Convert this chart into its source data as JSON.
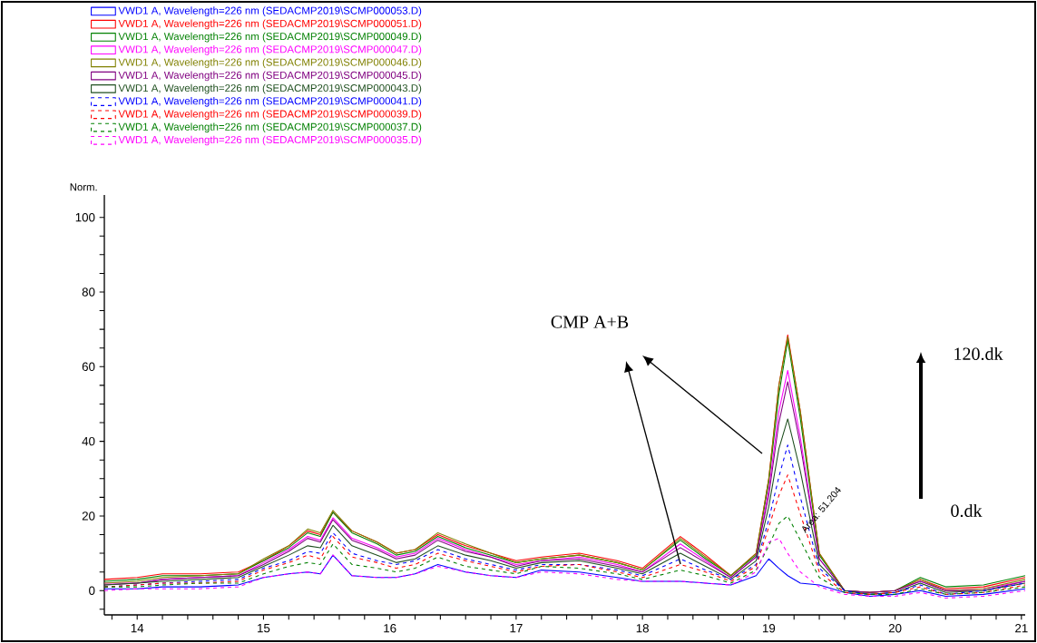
{
  "chart_data": {
    "type": "line",
    "ylabel": "Norm.",
    "legend": "top left",
    "grid": false,
    "marker": "none",
    "xlim": [
      13.74,
      21.03
    ],
    "ylim": [
      -6.5,
      106
    ],
    "xticks": [
      {
        "value": 13.8,
        "label": null
      },
      14,
      {
        "value": 14.2,
        "label": null
      },
      {
        "value": 14.4,
        "label": null
      },
      {
        "value": 14.6,
        "label": null
      },
      {
        "value": 14.8,
        "label": null
      },
      15,
      {
        "value": 15.2,
        "label": null
      },
      {
        "value": 15.4,
        "label": null
      },
      {
        "value": 15.6,
        "label": null
      },
      {
        "value": 15.8,
        "label": null
      },
      16,
      {
        "value": 16.2,
        "label": null
      },
      {
        "value": 16.4,
        "label": null
      },
      {
        "value": 16.6,
        "label": null
      },
      {
        "value": 16.8,
        "label": null
      },
      17,
      {
        "value": 17.2,
        "label": null
      },
      {
        "value": 17.4,
        "label": null
      },
      {
        "value": 17.6,
        "label": null
      },
      {
        "value": 17.8,
        "label": null
      },
      18,
      {
        "value": 18.2,
        "label": null
      },
      {
        "value": 18.4,
        "label": null
      },
      {
        "value": 18.6,
        "label": null
      },
      {
        "value": 18.8,
        "label": null
      },
      19,
      {
        "value": 19.2,
        "label": null
      },
      {
        "value": 19.4,
        "label": null
      },
      {
        "value": 19.6,
        "label": null
      },
      {
        "value": 19.8,
        "label": null
      },
      20,
      {
        "value": 20.2,
        "label": null
      },
      {
        "value": 20.4,
        "label": null
      },
      {
        "value": 20.6,
        "label": null
      },
      {
        "value": 20.8,
        "label": null
      },
      21
    ],
    "yticks": [
      {
        "value": -5,
        "label": null
      },
      0,
      {
        "value": 5,
        "label": null
      },
      {
        "value": 10,
        "label": null
      },
      {
        "value": 15,
        "label": null
      },
      20,
      {
        "value": 25,
        "label": null
      },
      {
        "value": 30,
        "label": null
      },
      {
        "value": 35,
        "label": null
      },
      40,
      {
        "value": 45,
        "label": null
      },
      {
        "value": 50,
        "label": null
      },
      {
        "value": 55,
        "label": null
      },
      60,
      {
        "value": 65,
        "label": null
      },
      {
        "value": 70,
        "label": null
      },
      {
        "value": 75,
        "label": null
      },
      80,
      {
        "value": 85,
        "label": null
      },
      {
        "value": 90,
        "label": null
      },
      {
        "value": 95,
        "label": null
      },
      100
    ],
    "x": [
      13.74,
      14.0,
      14.2,
      14.5,
      14.8,
      15.0,
      15.2,
      15.35,
      15.45,
      15.55,
      15.7,
      15.9,
      16.05,
      16.2,
      16.38,
      16.6,
      16.8,
      17.0,
      17.2,
      17.5,
      17.8,
      18.0,
      18.3,
      18.5,
      18.7,
      18.9,
      19.0,
      19.08,
      19.15,
      19.25,
      19.4,
      19.6,
      19.8,
      20.0,
      20.2,
      20.4,
      20.7,
      21.03
    ],
    "annotations": [
      "CMP A+B",
      "120.dk",
      "0.dk",
      "Area: 51.204"
    ],
    "series": [
      {
        "name": "VWD1 A, Wavelength=226 nm (SEDACMP2019\\SCMP000053.D)",
        "color": "#0000ff",
        "line_style": "solid",
        "values": [
          0.5,
          0.5,
          1,
          1,
          1.5,
          3.5,
          4.5,
          5,
          4.5,
          9.5,
          4,
          3.5,
          3.5,
          4.5,
          7,
          5,
          4,
          3.5,
          5.5,
          5,
          3.5,
          2.5,
          2.5,
          2,
          1.5,
          4,
          8.5,
          6,
          4,
          2,
          1.5,
          -0.5,
          -1.5,
          -1,
          0,
          -1.5,
          -1,
          0.5
        ]
      },
      {
        "name": "VWD1 A, Wavelength=226 nm (SEDACMP2019\\SCMP000051.D)",
        "color": "#ff0000",
        "line_style": "solid",
        "values": [
          3,
          3.5,
          4.5,
          4.5,
          5,
          8,
          12,
          16,
          15,
          21,
          16,
          13,
          10,
          11,
          15,
          12,
          10,
          8,
          9,
          10,
          8,
          6,
          14.5,
          9.5,
          4,
          10,
          30,
          55,
          68.5,
          48,
          10,
          0,
          -0.5,
          0,
          3,
          0.5,
          1,
          3.5
        ]
      },
      {
        "name": "VWD1 A, Wavelength=226 nm (SEDACMP2019\\SCMP000049.D)",
        "color": "#008000",
        "line_style": "solid",
        "values": [
          2.5,
          3,
          4,
          4,
          4.5,
          8,
          11.5,
          15.5,
          14.5,
          21,
          15.5,
          12.5,
          9.5,
          10.5,
          14.5,
          11.5,
          9.5,
          7.5,
          8.5,
          9.5,
          7.5,
          5.5,
          13.5,
          8.5,
          4,
          9.5,
          29,
          52.5,
          67,
          46,
          9.5,
          0,
          -0.5,
          0,
          3.5,
          1,
          1.5,
          4
        ]
      },
      {
        "name": "VWD1 A, Wavelength=226 nm (SEDACMP2019\\SCMP000047.D)",
        "color": "#ff00ff",
        "line_style": "solid",
        "values": [
          2,
          2,
          3,
          3.5,
          4,
          7.5,
          11,
          14.5,
          13.5,
          19.5,
          14,
          11.5,
          9,
          10,
          14,
          11,
          9,
          7,
          8,
          9,
          7,
          5,
          12.5,
          8,
          3.5,
          9,
          27,
          48,
          59,
          41,
          8.5,
          0,
          -0.5,
          0,
          2.5,
          0,
          0.5,
          2.5
        ]
      },
      {
        "name": "VWD1 A, Wavelength=226 nm (SEDACMP2019\\SCMP000046.D)",
        "color": "#808000",
        "line_style": "solid",
        "values": [
          2,
          2.5,
          3.5,
          4,
          4.5,
          8.5,
          12,
          16.5,
          15.5,
          21.5,
          16,
          13,
          10,
          11,
          15.5,
          12.5,
          10,
          7.5,
          8.5,
          9.5,
          7.5,
          5.5,
          14,
          9,
          4,
          10,
          30,
          55,
          68,
          48,
          10,
          0,
          -0.5,
          0,
          3,
          0,
          0.5,
          3
        ]
      },
      {
        "name": "VWD1 A, Wavelength=226 nm (SEDACMP2019\\SCMP000045.D)",
        "color": "#800080",
        "line_style": "solid",
        "values": [
          1.5,
          2,
          3,
          3.5,
          4,
          7,
          10.5,
          14,
          13,
          19,
          13.5,
          11,
          8.5,
          9.5,
          13.5,
          10.5,
          9,
          6.5,
          8,
          8.5,
          6.5,
          5,
          11.5,
          7.5,
          3.5,
          9,
          25.5,
          45,
          56,
          39,
          8.5,
          0,
          -0.5,
          0,
          2.5,
          0,
          0,
          2.5
        ]
      },
      {
        "name": "VWD1 A, Wavelength=226 nm (SEDACMP2019\\SCMP000043.D)",
        "color": "#1f4f1f",
        "line_style": "solid",
        "values": [
          1.5,
          2,
          2.5,
          3,
          3.5,
          6.5,
          9.5,
          12,
          11.5,
          17.5,
          12,
          9.5,
          7.5,
          8.5,
          12,
          9.5,
          8,
          6,
          7.5,
          8,
          6,
          4.5,
          10,
          6.5,
          3,
          8,
          22.5,
          38,
          46,
          32,
          7,
          0,
          -1,
          -0.5,
          2,
          -0.5,
          0,
          2
        ]
      },
      {
        "name": "VWD1 A, Wavelength=226 nm (SEDACMP2019\\SCMP000041.D)",
        "color": "#0000ff",
        "line_style": "dashed",
        "values": [
          1,
          1.5,
          2,
          2.5,
          3,
          6,
          8,
          10.5,
          10,
          15.5,
          10,
          8,
          7,
          8,
          11,
          8.5,
          7,
          5.5,
          7,
          7,
          5.5,
          4,
          8.5,
          5.5,
          3,
          7,
          19,
          30.5,
          39,
          25,
          6,
          0,
          -1,
          -0.5,
          1.5,
          -1,
          0,
          2
        ]
      },
      {
        "name": "VWD1 A, Wavelength=226 nm (SEDACMP2019\\SCMP000039.D)",
        "color": "#ff0000",
        "line_style": "dashed",
        "values": [
          1,
          1.5,
          2,
          2,
          2.5,
          5.5,
          7.5,
          9.5,
          8.5,
          14.5,
          9,
          7.5,
          6,
          7,
          10,
          8,
          6.5,
          5,
          6.5,
          7,
          5,
          3.5,
          7,
          5,
          2.5,
          6.5,
          17,
          25.5,
          31,
          20.5,
          5,
          -0.5,
          -1,
          -0.5,
          1,
          -1,
          -0.5,
          1.5
        ]
      },
      {
        "name": "VWD1 A, Wavelength=226 nm (SEDACMP2019\\SCMP000037.D)",
        "color": "#008000",
        "line_style": "dashed",
        "values": [
          1,
          1,
          1.5,
          2,
          2,
          4.5,
          6.5,
          7.5,
          7,
          12.5,
          7,
          6,
          5,
          6,
          9,
          6.5,
          5.5,
          4.5,
          6.5,
          6,
          4.5,
          3,
          5.5,
          4,
          2,
          5.5,
          12,
          18,
          20,
          13.5,
          3.5,
          -0.5,
          -1,
          -1,
          0.5,
          -1,
          -0.5,
          1
        ]
      },
      {
        "name": "VWD1 A, Wavelength=226 nm (SEDACMP2019\\SCMP000035.D)",
        "color": "#ff00ff",
        "line_style": "dashed",
        "values": [
          0,
          0.5,
          0.5,
          0.5,
          1,
          3.5,
          4.5,
          5,
          4.5,
          9.5,
          4,
          3.5,
          3.5,
          4.5,
          6.5,
          5,
          4,
          3.5,
          5,
          4.5,
          3,
          2.5,
          2.5,
          2,
          1.5,
          5,
          13,
          14,
          10,
          5,
          1,
          -1,
          -1.5,
          -1.5,
          -0.5,
          -2,
          -1.5,
          0
        ]
      }
    ]
  }
}
